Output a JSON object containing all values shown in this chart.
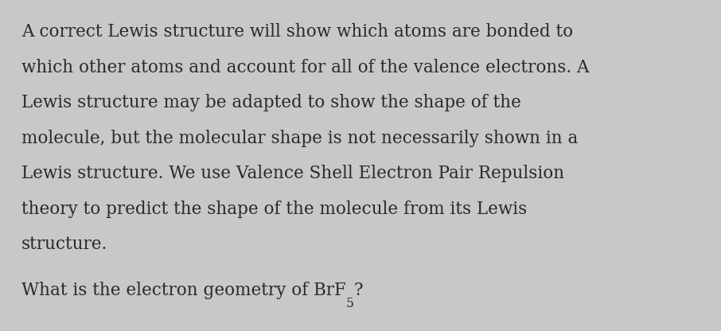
{
  "background_color": "#c8c8c8",
  "text_color": "#2a2a2a",
  "paragraph_lines": [
    "A correct Lewis structure will show which atoms are bonded to",
    "which other atoms and account for all of the valence electrons. A",
    "Lewis structure may be adapted to show the shape of the",
    "molecule, but the molecular shape is not necessarily shown in a",
    "Lewis structure. We use Valence Shell Electron Pair Repulsion",
    "theory to predict the shape of the molecule from its Lewis",
    "structure."
  ],
  "question_prefix": "What is the electron geometry of BrF",
  "question_subscript": "5",
  "question_suffix": "?",
  "font_size_para": 15.5,
  "font_size_question": 15.5,
  "figsize": [
    9.06,
    4.16
  ],
  "dpi": 100
}
